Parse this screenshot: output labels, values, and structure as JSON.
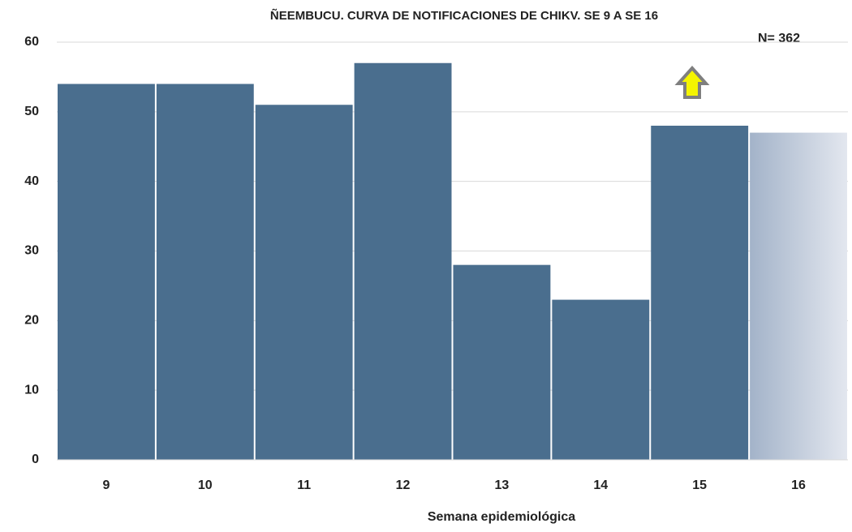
{
  "chart_data": {
    "type": "bar",
    "title": "ÑEEMBUCU. CURVA DE NOTIFICACIONES DE CHIKV. SE 9 A SE 16",
    "annotation": "N= 362",
    "x_label": "Semana epidemiológica",
    "categories": [
      "9",
      "10",
      "11",
      "12",
      "13",
      "14",
      "15",
      "16"
    ],
    "values": [
      54,
      54,
      51,
      57,
      28,
      23,
      48,
      47
    ],
    "colors": [
      "#4a6e8e",
      "#4a6e8e",
      "#4a6e8e",
      "#4a6e8e",
      "#4a6e8e",
      "#4a6e8e",
      "#4a6e8e",
      [
        "#a3b3c9",
        "#e3e7ef"
      ]
    ],
    "ylim": [
      0,
      60
    ],
    "yticks": [
      0,
      10,
      20,
      30,
      40,
      50,
      60
    ],
    "grid": true
  }
}
